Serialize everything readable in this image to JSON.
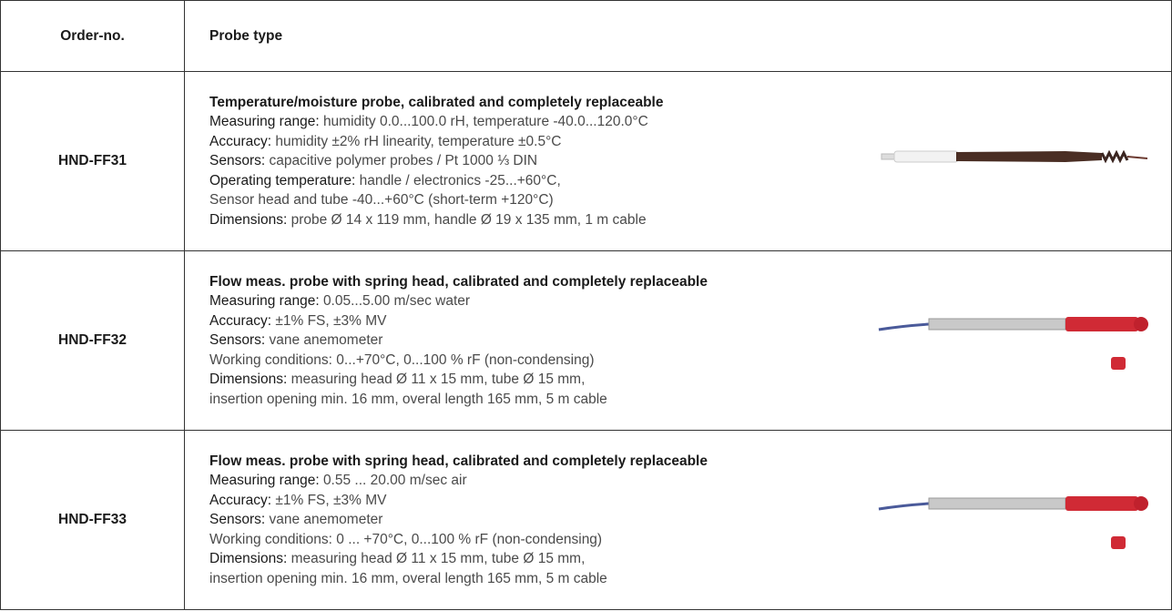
{
  "table": {
    "header": [
      "Order-no.",
      "Probe type"
    ],
    "rows": [
      {
        "order": "HND-FF31",
        "title": "Temperature/moisture probe, calibrated and completely replaceable",
        "lines": [
          {
            "label": "Measuring range:",
            "text": "humidity 0.0...100.0 rH, temperature -40.0...120.0°C"
          },
          {
            "label": "Accuracy:",
            "text": "humidity ±2% rH linearity, temperature ±0.5°C"
          },
          {
            "label": "Sensors:",
            "text": "capacitive polymer probes / Pt 1000 ⅓ DIN"
          },
          {
            "label": "Operating temperature:",
            "text": "handle / electronics -25...+60°C,"
          },
          {
            "text": "Sensor head and tube -40...+60°C (short-term +120°C)"
          },
          {
            "label": "Dimensions:",
            "text": "probe Ø 14 x 119 mm, handle Ø 19 x 135 mm, 1 m cable"
          }
        ]
      },
      {
        "order": "HND-FF32",
        "title": "Flow meas. probe with spring head, calibrated and completely replaceable",
        "lines": [
          {
            "label": "Measuring range:",
            "text": "0.05...5.00 m/sec water"
          },
          {
            "label": "Accuracy:",
            "text": " ±1% FS, ±3% MV"
          },
          {
            "label": "Sensors:",
            "text": "vane anemometer"
          },
          {
            "text": "Working conditions: 0...+70°C, 0...100 % rF (non-condensing)"
          },
          {
            "label": "Dimensions:",
            "text": "measuring head Ø 11 x 15 mm, tube Ø 15 mm,"
          },
          {
            "text": "insertion opening min. 16 mm, overal length 165 mm, 5 m cable"
          }
        ]
      },
      {
        "order": "HND-FF33",
        "title": "Flow meas. probe with spring head, calibrated and completely replaceable",
        "lines": [
          {
            "label": "Measuring range:",
            "text": "0.55 ... 20.00 m/sec air"
          },
          {
            "label": "Accuracy:",
            "text": "±1% FS, ±3% MV"
          },
          {
            "label": "Sensors:",
            "text": "vane anemometer"
          },
          {
            "text": "Working conditions: 0 ... +70°C, 0...100 % rF (non-condensing)"
          },
          {
            "label": "Dimensions:",
            "text": "measuring head Ø 11 x 15 mm, tube Ø 15 mm,"
          },
          {
            "text": "insertion opening min. 16 mm, overal length 165 mm, 5 m cable"
          }
        ]
      }
    ]
  }
}
